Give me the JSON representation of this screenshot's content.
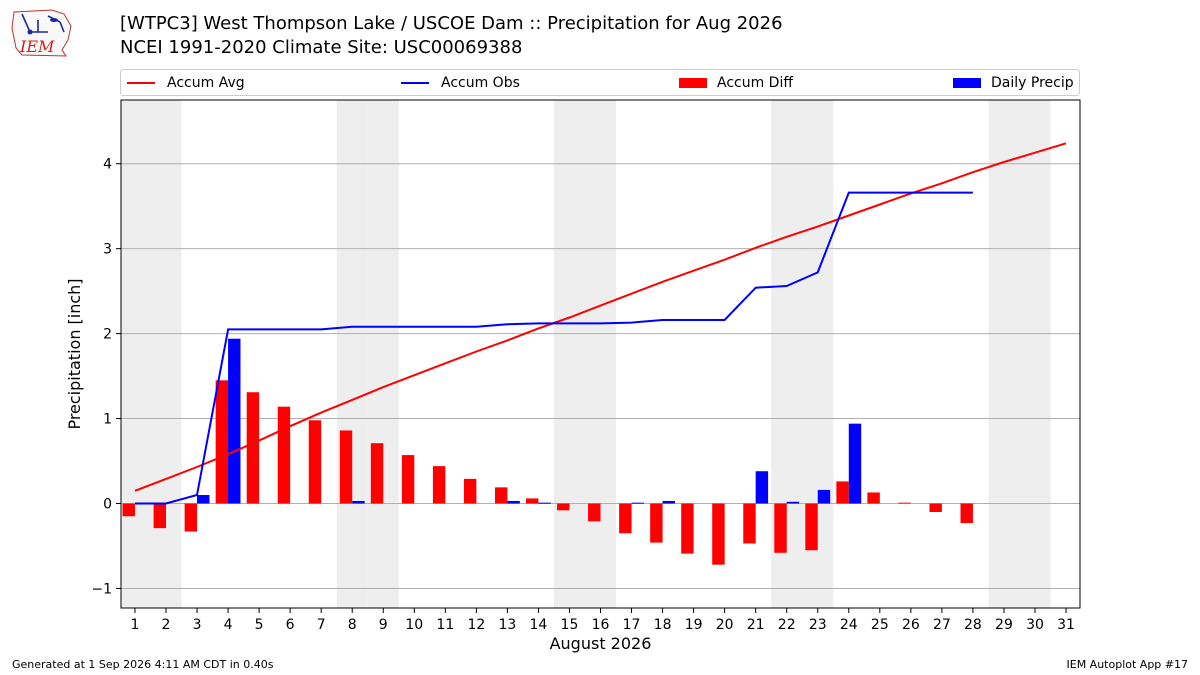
{
  "header": {
    "title_line1": "[WTPC3] West Thompson Lake / USCOE Dam :: Precipitation for Aug 2026",
    "title_line2": "NCEI 1991-2020 Climate Site: USC00069388",
    "logo_text": "IEM"
  },
  "legend": {
    "items": [
      {
        "label": "Accum Avg",
        "kind": "line",
        "color": "#ff0000"
      },
      {
        "label": "Accum Obs",
        "kind": "line",
        "color": "#0000ff"
      },
      {
        "label": "Accum Diff",
        "kind": "bar",
        "color": "#ff0000"
      },
      {
        "label": "Daily Precip",
        "kind": "bar",
        "color": "#0000ff"
      }
    ]
  },
  "footer": {
    "generated": "Generated at 1 Sep 2026 4:11 AM CDT in 0.40s",
    "app": "IEM Autoplot App #17"
  },
  "colors": {
    "avg": "#ff0000",
    "obs": "#0000ff",
    "weekend_band": "#eeeeee",
    "grid": "#b0b0b0"
  },
  "chart_data": {
    "type": "bar",
    "xlabel": "August 2026",
    "ylabel": "Precipitation [inch]",
    "ylim": [
      -1.23,
      4.75
    ],
    "yticks": [
      -1,
      0,
      1,
      2,
      3,
      4
    ],
    "xticks": [
      1,
      2,
      3,
      4,
      5,
      6,
      7,
      8,
      9,
      10,
      11,
      12,
      13,
      14,
      15,
      16,
      17,
      18,
      19,
      20,
      21,
      22,
      23,
      24,
      25,
      26,
      27,
      28,
      29,
      30,
      31
    ],
    "grid": "horizontal",
    "legend_position": "top",
    "weekend_days": [
      1,
      2,
      8,
      9,
      15,
      16,
      22,
      23,
      29,
      30
    ],
    "days": [
      1,
      2,
      3,
      4,
      5,
      6,
      7,
      8,
      9,
      10,
      11,
      12,
      13,
      14,
      15,
      16,
      17,
      18,
      19,
      20,
      21,
      22,
      23,
      24,
      25,
      26,
      27,
      28,
      29,
      30,
      31
    ],
    "series": [
      {
        "name": "Accum Avg",
        "type": "line",
        "values": [
          0.15,
          0.29,
          0.43,
          0.58,
          0.74,
          0.91,
          1.07,
          1.22,
          1.37,
          1.51,
          1.65,
          1.79,
          1.92,
          2.06,
          2.19,
          2.33,
          2.47,
          2.61,
          2.74,
          2.87,
          3.01,
          3.14,
          3.26,
          3.39,
          3.52,
          3.65,
          3.77,
          3.9,
          4.02,
          4.13,
          4.24
        ]
      },
      {
        "name": "Accum Obs",
        "type": "line",
        "values": [
          0.0,
          0.0,
          0.1,
          2.05,
          2.05,
          2.05,
          2.05,
          2.08,
          2.08,
          2.08,
          2.08,
          2.08,
          2.11,
          2.12,
          2.12,
          2.12,
          2.13,
          2.16,
          2.16,
          2.16,
          2.54,
          2.56,
          2.72,
          3.66,
          3.66,
          3.66,
          3.66,
          3.66
        ]
      },
      {
        "name": "Accum Diff",
        "type": "bar",
        "values": [
          -0.15,
          -0.29,
          -0.33,
          1.45,
          1.31,
          1.14,
          0.98,
          0.86,
          0.71,
          0.57,
          0.44,
          0.29,
          0.19,
          0.06,
          -0.08,
          -0.21,
          -0.35,
          -0.46,
          -0.59,
          -0.72,
          -0.47,
          -0.58,
          -0.55,
          0.26,
          0.13,
          0.01,
          -0.1,
          -0.23
        ]
      },
      {
        "name": "Daily Precip",
        "type": "bar",
        "values": [
          0.0,
          0.0,
          0.1,
          1.94,
          0.0,
          0.0,
          0.0,
          0.03,
          0.0,
          0.0,
          0.0,
          0.0,
          0.03,
          0.01,
          0.0,
          0.0,
          0.01,
          0.03,
          0.0,
          0.0,
          0.38,
          0.02,
          0.16,
          0.94,
          0.0,
          0.0,
          0.0,
          0.0
        ]
      }
    ]
  }
}
